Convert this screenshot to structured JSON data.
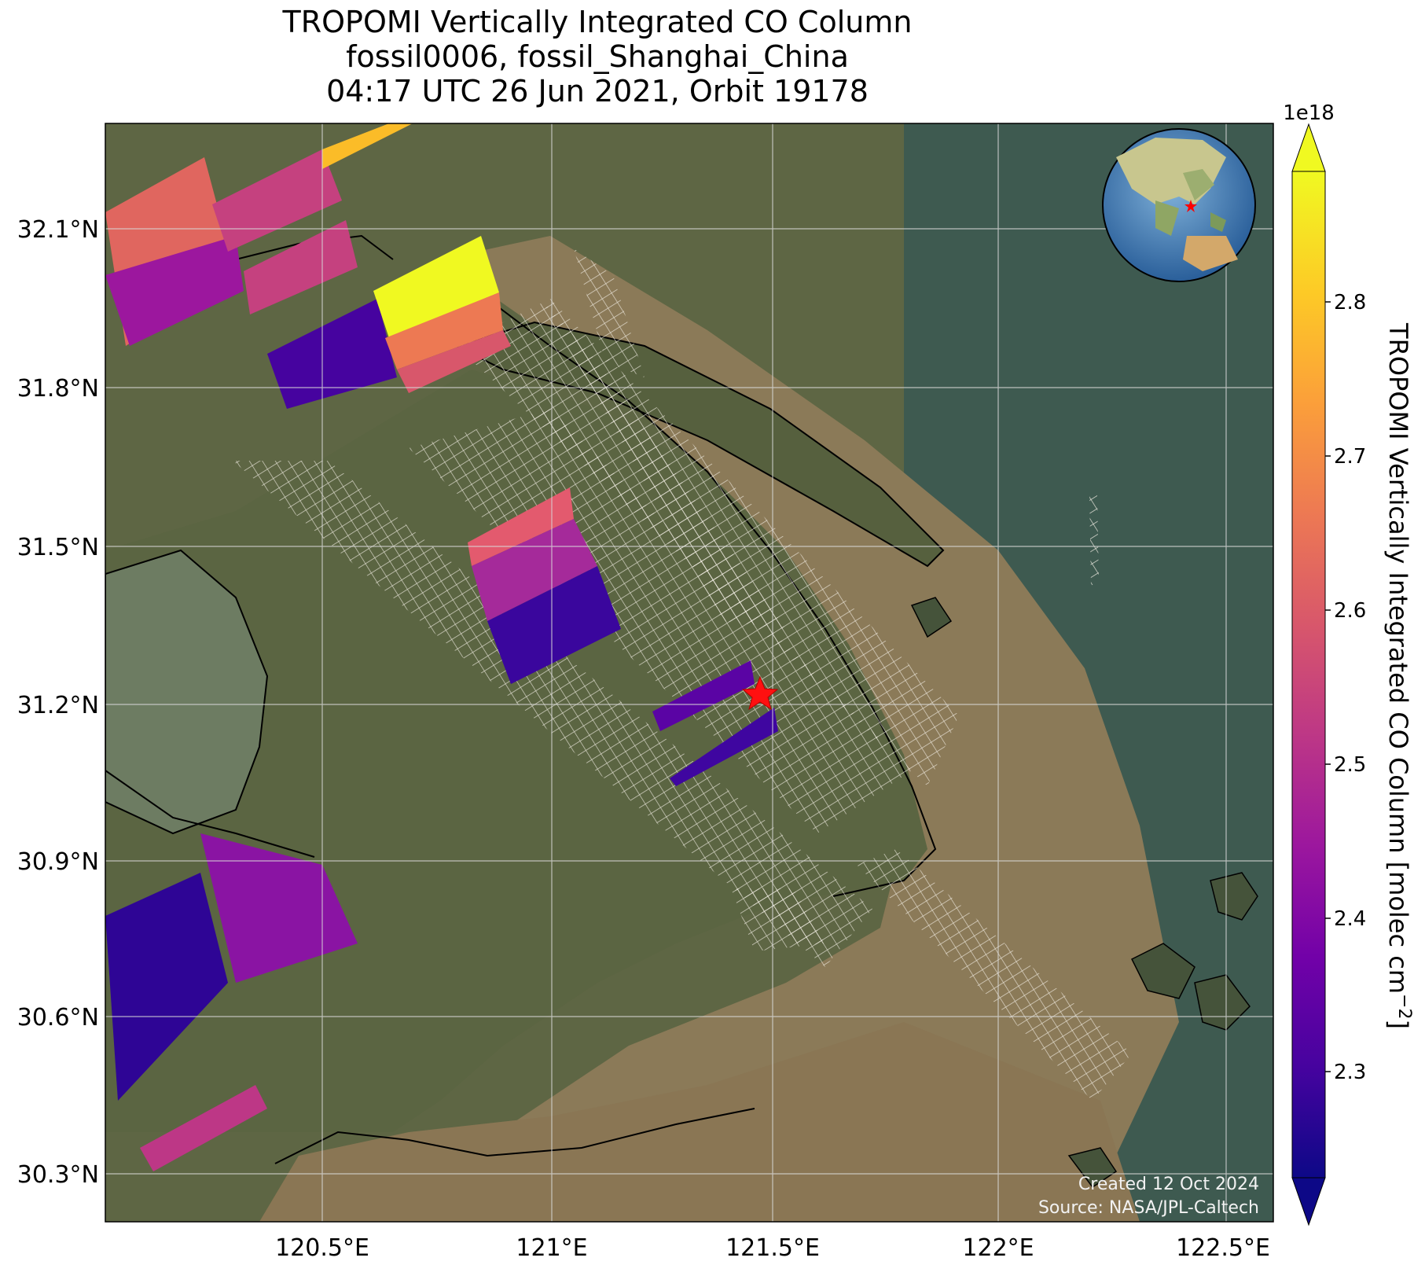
{
  "title": {
    "line1": "TROPOMI Vertically Integrated CO Column",
    "line2": "fossil0006, fossil_Shanghai_China",
    "line3": "04:17 UTC 26 Jun 2021, Orbit 19178"
  },
  "axes": {
    "lon_ticks": [
      "120.5°E",
      "121°E",
      "121.5°E",
      "122°E",
      "122.5°E"
    ],
    "lat_ticks": [
      "32.1°N",
      "31.8°N",
      "31.5°N",
      "31.2°N",
      "30.9°N",
      "30.6°N",
      "30.3°N"
    ]
  },
  "colorbar": {
    "label": "TROPOMI Vertically Integrated CO Column [molec cm",
    "label_exp": "−2",
    "label_close": "]",
    "multiplier": "1e18",
    "ticks": [
      "2.3",
      "2.4",
      "2.5",
      "2.6",
      "2.7",
      "2.8"
    ],
    "colors": [
      "#0d0887",
      "#46039f",
      "#7201a8",
      "#9c179e",
      "#bd3786",
      "#d8576b",
      "#ed7953",
      "#fb9f3a",
      "#fdca26",
      "#f0f921"
    ]
  },
  "credits": {
    "created": "Created 12 Oct 2024",
    "source": "Source: NASA/JPL-Caltech"
  },
  "map": {
    "target_marker": "red-star",
    "land_color": "#5a6440",
    "water_color": "#8a7a5a",
    "sea_color": "#3f5b50"
  }
}
